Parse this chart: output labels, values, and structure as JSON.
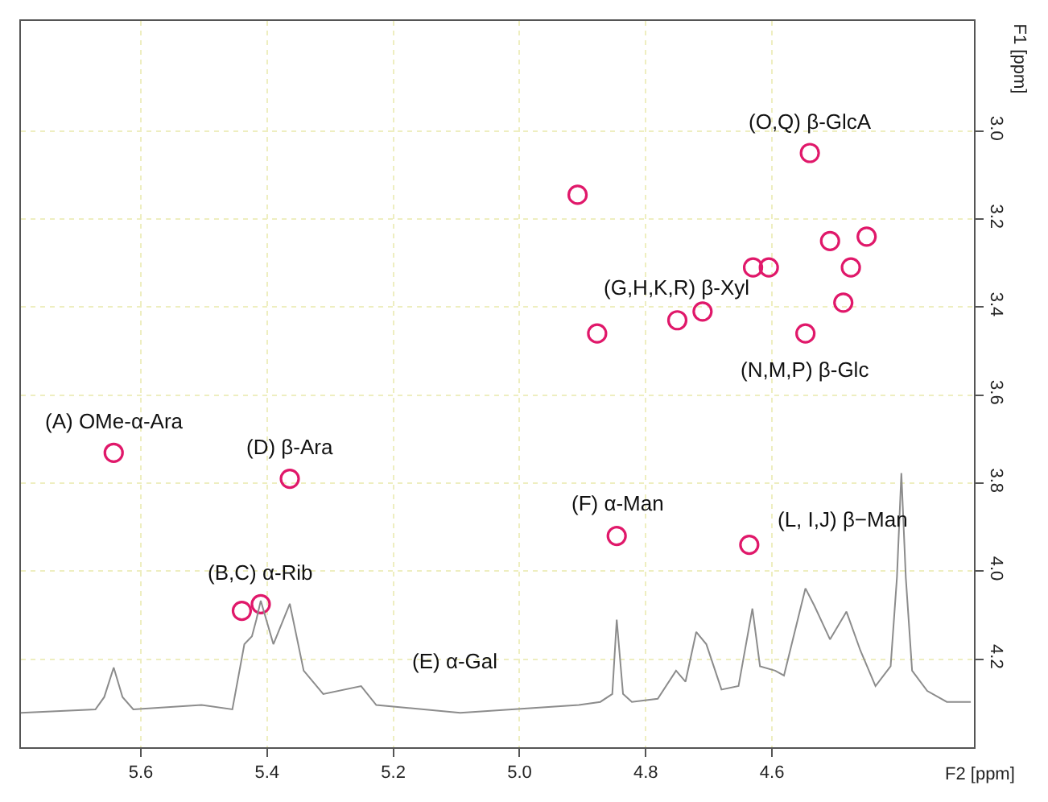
{
  "chart_data": {
    "type": "scatter",
    "xlabel": "F2 [ppm]",
    "ylabel": "F1 [ppm]",
    "xlim": [
      5.79,
      4.28
    ],
    "ylim": [
      4.4,
      2.75
    ],
    "xticks": [
      5.6,
      5.4,
      5.2,
      {
        "value": 5.0,
        "label": "5.0"
      },
      4.8,
      4.6
    ],
    "yticks": [
      {
        "value": 3.0,
        "label": "3.0"
      },
      3.2,
      3.4,
      3.6,
      3.8,
      {
        "value": 4.0,
        "label": "4.0"
      },
      4.2
    ],
    "grid": true,
    "series": [
      {
        "marker": "circle",
        "color": "#e0186a",
        "x": [
          5.643,
          5.364,
          5.44,
          5.41,
          4.846,
          4.636,
          4.908,
          4.877,
          4.75,
          4.71,
          4.63,
          4.605,
          4.54,
          4.508,
          4.45,
          4.475,
          4.487,
          4.547
        ],
        "values": [
          3.731,
          3.79,
          4.09,
          4.075,
          3.92,
          3.94,
          3.145,
          3.46,
          3.43,
          3.41,
          3.31,
          3.31,
          3.05,
          3.25,
          3.24,
          3.31,
          3.39,
          3.46
        ]
      },
      {
        "type": "line",
        "color": "#8c8c8c",
        "x": [
          5.79,
          5.672,
          5.658,
          5.643,
          5.629,
          5.612,
          5.504,
          5.455,
          5.436,
          5.424,
          5.417,
          5.41,
          5.39,
          5.364,
          5.342,
          5.311,
          5.251,
          5.227,
          5.094,
          4.906,
          4.872,
          4.853,
          4.846,
          4.836,
          4.822,
          4.781,
          4.752,
          4.737,
          4.72,
          4.704,
          4.68,
          4.653,
          4.631,
          4.619,
          4.595,
          4.581,
          4.547,
          4.533,
          4.508,
          4.482,
          4.46,
          4.436,
          4.412,
          4.402,
          4.395,
          4.388,
          4.378,
          4.354,
          4.323,
          4.285
        ],
        "values": [
          4.322,
          4.314,
          4.286,
          4.219,
          4.286,
          4.314,
          4.304,
          4.314,
          4.166,
          4.148,
          4.11,
          4.067,
          4.166,
          4.074,
          4.226,
          4.279,
          4.261,
          4.304,
          4.322,
          4.304,
          4.297,
          4.279,
          4.11,
          4.279,
          4.297,
          4.29,
          4.226,
          4.251,
          4.138,
          4.166,
          4.269,
          4.261,
          4.085,
          4.216,
          4.226,
          4.237,
          4.039,
          4.078,
          4.155,
          4.092,
          4.18,
          4.261,
          4.216,
          4.014,
          3.777,
          4.014,
          4.226,
          4.272,
          4.297,
          4.297
        ]
      }
    ],
    "annotations": [
      {
        "text": "(A) OMe-α-Ara",
        "x": 5.643,
        "y": 3.731
      },
      {
        "text": "(D) β-Ara",
        "x": 5.364,
        "y": 3.79
      },
      {
        "text": "(B,C) α-Rib",
        "x": 5.41,
        "y": 4.075
      },
      {
        "text": "(E) α-Gal",
        "x": 5.251,
        "y": 4.261
      },
      {
        "text": "(F) α-Man",
        "x": 4.846,
        "y": 3.92
      },
      {
        "text": "(L, I,J) β−Man",
        "x": 4.636,
        "y": 3.94
      },
      {
        "text": "(G,H,K,R) β-Xyl",
        "x": 4.75,
        "y": 3.43
      },
      {
        "text": "(O,Q) β-GlcA",
        "x": 4.54,
        "y": 3.05
      },
      {
        "text": "(N,M,P) β-Glc",
        "x": 4.547,
        "y": 3.46
      }
    ]
  }
}
